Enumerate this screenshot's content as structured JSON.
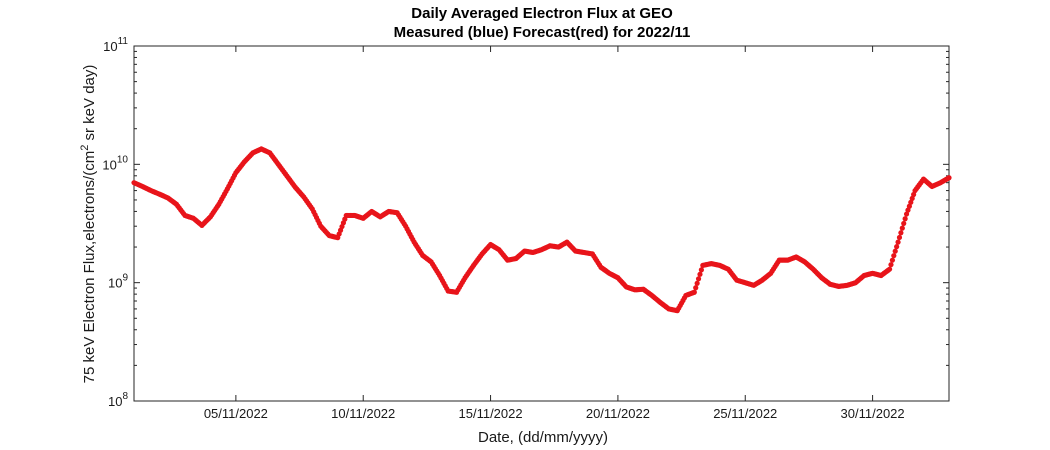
{
  "chart_data": {
    "type": "scatter",
    "title": "Daily Averaged Electron Flux at GEO",
    "subtitle": "Measured (blue) Forecast(red) for 2022/11",
    "xlabel": "Date, (dd/mm/yyyy)",
    "ylabel_main": "75 keV Electron Flux,electrons/(cm",
    "ylabel_sup": "2",
    "ylabel_tail": " sr keV day)",
    "xlim": [
      "2022-11-01",
      "2022-12-03"
    ],
    "ylim": [
      100000000,
      100000000000
    ],
    "yscale": "log",
    "grid": false,
    "x_ticks": [
      "2022-11-05",
      "2022-11-10",
      "2022-11-15",
      "2022-11-20",
      "2022-11-25",
      "2022-11-30"
    ],
    "x_tick_labels": [
      "05/11/2022",
      "10/11/2022",
      "15/11/2022",
      "20/11/2022",
      "25/11/2022",
      "30/11/2022"
    ],
    "y_ticks": [
      {
        "value": 100000000,
        "base": "10",
        "exp": "8"
      },
      {
        "value": 1000000000,
        "base": "10",
        "exp": "9"
      },
      {
        "value": 10000000000,
        "base": "10",
        "exp": "10"
      },
      {
        "value": 100000000000,
        "base": "10",
        "exp": "11"
      }
    ],
    "series": [
      {
        "color": "#e8141a",
        "points": [
          [
            "2022-11-01 00:00",
            7000000000.0
          ],
          [
            "2022-11-01 08:00",
            6500000000.0
          ],
          [
            "2022-11-01 16:00",
            6000000000.0
          ],
          [
            "2022-11-02 00:00",
            5600000000.0
          ],
          [
            "2022-11-02 08:00",
            5200000000.0
          ],
          [
            "2022-11-02 16:00",
            4600000000.0
          ],
          [
            "2022-11-03 00:00",
            3700000000.0
          ],
          [
            "2022-11-03 08:00",
            3500000000.0
          ],
          [
            "2022-11-03 16:00",
            3050000000.0
          ],
          [
            "2022-11-04 00:00",
            3600000000.0
          ],
          [
            "2022-11-04 08:00",
            4600000000.0
          ],
          [
            "2022-11-04 16:00",
            6200000000.0
          ],
          [
            "2022-11-05 00:00",
            8500000000.0
          ],
          [
            "2022-11-05 08:00",
            10500000000.0
          ],
          [
            "2022-11-05 16:00",
            12500000000.0
          ],
          [
            "2022-11-06 00:00",
            13500000000.0
          ],
          [
            "2022-11-06 08:00",
            12500000000.0
          ],
          [
            "2022-11-06 16:00",
            10000000000.0
          ],
          [
            "2022-11-07 00:00",
            8000000000.0
          ],
          [
            "2022-11-07 08:00",
            6400000000.0
          ],
          [
            "2022-11-07 16:00",
            5300000000.0
          ],
          [
            "2022-11-08 00:00",
            4200000000.0
          ],
          [
            "2022-11-08 08:00",
            3000000000.0
          ],
          [
            "2022-11-08 16:00",
            2500000000.0
          ],
          [
            "2022-11-09 00:00",
            2400000000.0
          ],
          [
            "2022-11-09 08:00",
            3700000000.0
          ],
          [
            "2022-11-09 16:00",
            3700000000.0
          ],
          [
            "2022-11-10 00:00",
            3500000000.0
          ],
          [
            "2022-11-10 08:00",
            4000000000.0
          ],
          [
            "2022-11-10 16:00",
            3600000000.0
          ],
          [
            "2022-11-11 00:00",
            4000000000.0
          ],
          [
            "2022-11-11 08:00",
            3900000000.0
          ],
          [
            "2022-11-11 16:00",
            3000000000.0
          ],
          [
            "2022-11-12 00:00",
            2200000000.0
          ],
          [
            "2022-11-12 08:00",
            1700000000.0
          ],
          [
            "2022-11-12 16:00",
            1500000000.0
          ],
          [
            "2022-11-13 00:00",
            1150000000.0
          ],
          [
            "2022-11-13 08:00",
            850000000.0
          ],
          [
            "2022-11-13 16:00",
            830000000.0
          ],
          [
            "2022-11-14 00:00",
            1100000000.0
          ],
          [
            "2022-11-14 08:00",
            1400000000.0
          ],
          [
            "2022-11-14 16:00",
            1750000000.0
          ],
          [
            "2022-11-15 00:00",
            2100000000.0
          ],
          [
            "2022-11-15 08:00",
            1900000000.0
          ],
          [
            "2022-11-15 16:00",
            1550000000.0
          ],
          [
            "2022-11-16 00:00",
            1600000000.0
          ],
          [
            "2022-11-16 08:00",
            1850000000.0
          ],
          [
            "2022-11-16 16:00",
            1800000000.0
          ],
          [
            "2022-11-17 00:00",
            1900000000.0
          ],
          [
            "2022-11-17 08:00",
            2050000000.0
          ],
          [
            "2022-11-17 16:00",
            2000000000.0
          ],
          [
            "2022-11-18 00:00",
            2200000000.0
          ],
          [
            "2022-11-18 08:00",
            1850000000.0
          ],
          [
            "2022-11-18 16:00",
            1800000000.0
          ],
          [
            "2022-11-19 00:00",
            1750000000.0
          ],
          [
            "2022-11-19 08:00",
            1350000000.0
          ],
          [
            "2022-11-19 16:00",
            1200000000.0
          ],
          [
            "2022-11-20 00:00",
            1100000000.0
          ],
          [
            "2022-11-20 08:00",
            920000000.0
          ],
          [
            "2022-11-20 16:00",
            870000000.0
          ],
          [
            "2022-11-21 00:00",
            880000000.0
          ],
          [
            "2022-11-21 08:00",
            780000000.0
          ],
          [
            "2022-11-21 16:00",
            680000000.0
          ],
          [
            "2022-11-22 00:00",
            600000000.0
          ],
          [
            "2022-11-22 08:00",
            580000000.0
          ],
          [
            "2022-11-22 16:00",
            780000000.0
          ],
          [
            "2022-11-23 00:00",
            830000000.0
          ],
          [
            "2022-11-23 08:00",
            1400000000.0
          ],
          [
            "2022-11-23 16:00",
            1450000000.0
          ],
          [
            "2022-11-24 00:00",
            1400000000.0
          ],
          [
            "2022-11-24 08:00",
            1300000000.0
          ],
          [
            "2022-11-24 16:00",
            1050000000.0
          ],
          [
            "2022-11-25 00:00",
            1000000000.0
          ],
          [
            "2022-11-25 08:00",
            950000000.0
          ],
          [
            "2022-11-25 16:00",
            1050000000.0
          ],
          [
            "2022-11-26 00:00",
            1200000000.0
          ],
          [
            "2022-11-26 08:00",
            1550000000.0
          ],
          [
            "2022-11-26 16:00",
            1550000000.0
          ],
          [
            "2022-11-27 00:00",
            1650000000.0
          ],
          [
            "2022-11-27 08:00",
            1500000000.0
          ],
          [
            "2022-11-27 16:00",
            1300000000.0
          ],
          [
            "2022-11-28 00:00",
            1100000000.0
          ],
          [
            "2022-11-28 08:00",
            970000000.0
          ],
          [
            "2022-11-28 16:00",
            930000000.0
          ],
          [
            "2022-11-29 00:00",
            950000000.0
          ],
          [
            "2022-11-29 08:00",
            1000000000.0
          ],
          [
            "2022-11-29 16:00",
            1150000000.0
          ],
          [
            "2022-11-30 00:00",
            1200000000.0
          ],
          [
            "2022-11-30 08:00",
            1150000000.0
          ],
          [
            "2022-11-30 16:00",
            1300000000.0
          ],
          [
            "2022-12-01 00:00",
            2200000000.0
          ],
          [
            "2022-12-01 08:00",
            3800000000.0
          ],
          [
            "2022-12-01 16:00",
            6000000000.0
          ],
          [
            "2022-12-02 00:00",
            7500000000.0
          ],
          [
            "2022-12-02 08:00",
            6500000000.0
          ],
          [
            "2022-12-02 16:00",
            7000000000.0
          ],
          [
            "2022-12-03 00:00",
            7700000000.0
          ]
        ]
      }
    ]
  }
}
